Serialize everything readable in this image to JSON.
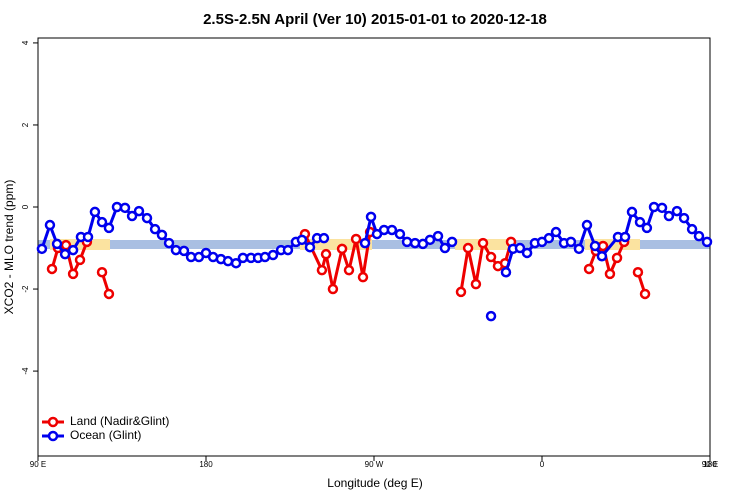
{
  "chart_data": {
    "type": "line",
    "title": "2.5S-2.5N April (Ver 10)   2015-01-01 to 2020-12-18",
    "xlabel": "Longitude (deg E)",
    "ylabel": "XCO2 - MLO trend (ppm)",
    "xlim": [
      90,
      450
    ],
    "ylim": [
      -6.07,
      4.12
    ],
    "xticks": [
      {
        "value": 90,
        "label": "90 E"
      },
      180,
      {
        "value": 270,
        "label": "90 W"
      },
      {
        "value": 360,
        "label": "0"
      },
      {
        "value": 450,
        "label": "90 E"
      },
      {
        "value": 540,
        "label": "180"
      }
    ],
    "yticks": [
      4,
      2,
      0,
      -2,
      -4
    ],
    "legend": "bottomleft",
    "series": [
      {
        "name": "Land (Nadir&Glint)",
        "color": "#ee0000",
        "x": [
          97.5,
          100.7,
          105.0,
          108.8,
          112.5,
          116.2,
          null,
          124.3,
          128.0,
          null,
          233.0,
          242.1,
          244.3,
          248.0,
          252.9,
          256.6,
          260.4,
          264.1,
          267.9,
          null,
          316.6,
          320.4,
          324.6,
          328.4,
          332.7,
          336.4,
          340.2,
          343.4,
          null,
          385.2,
          388.9,
          392.7,
          396.4,
          400.2,
          404.0,
          null,
          411.4,
          415.2
        ],
        "values": [
          -1.51,
          -1.0,
          -0.93,
          -1.63,
          -1.29,
          -0.85,
          null,
          -1.59,
          -2.12,
          null,
          -0.66,
          -1.54,
          -1.15,
          -2.0,
          -1.02,
          -1.54,
          -0.78,
          -1.71,
          -0.61,
          null,
          -2.07,
          -1.0,
          -1.88,
          -0.88,
          -1.22,
          -1.44,
          -1.37,
          -0.85,
          null,
          -1.51,
          -1.07,
          -0.95,
          -1.63,
          -1.24,
          -0.85,
          null,
          -1.59,
          -2.12
        ]
      },
      {
        "name": "Ocean (Glint)",
        "color": "#0000ee",
        "x": [
          92.1,
          96.4,
          100.2,
          104.5,
          108.8,
          113.0,
          116.8,
          120.5,
          124.3,
          128.0,
          132.3,
          136.6,
          140.4,
          144.1,
          148.4,
          152.7,
          156.4,
          160.2,
          163.9,
          168.2,
          172.0,
          176.2,
          180.0,
          183.8,
          188.0,
          191.8,
          196.1,
          199.8,
          204.1,
          207.9,
          211.6,
          215.9,
          220.2,
          223.9,
          228.2,
          231.4,
          235.7,
          239.5,
          243.2,
          null,
          265.2,
          268.4,
          271.6,
          275.4,
          279.6,
          283.9,
          287.7,
          292.0,
          296.2,
          300.0,
          304.3,
          308.0,
          311.8,
          null,
          332.7,
          null,
          340.7,
          344.5,
          348.2,
          352.0,
          356.2,
          360.0,
          363.7,
          367.5,
          371.8,
          375.5,
          379.8,
          384.1,
          388.4,
          392.1,
          400.7,
          404.5,
          408.2,
          412.5,
          416.2,
          420.0,
          424.3,
          428.0,
          432.3,
          436.1,
          440.4,
          444.1,
          448.4
        ],
        "values": [
          -1.02,
          -0.44,
          -0.9,
          -1.15,
          -1.05,
          -0.73,
          -0.73,
          -0.12,
          -0.37,
          -0.51,
          0,
          -0.02,
          -0.22,
          -0.1,
          -0.27,
          -0.54,
          -0.68,
          -0.88,
          -1.05,
          -1.07,
          -1.22,
          -1.22,
          -1.12,
          -1.22,
          -1.27,
          -1.32,
          -1.37,
          -1.24,
          -1.24,
          -1.24,
          -1.22,
          -1.17,
          -1.05,
          -1.05,
          -0.85,
          -0.8,
          -0.98,
          -0.76,
          -0.76,
          null,
          -0.88,
          -0.24,
          -0.66,
          -0.56,
          -0.56,
          -0.66,
          -0.85,
          -0.88,
          -0.9,
          -0.8,
          -0.71,
          -1.0,
          -0.85,
          null,
          -2.66,
          null,
          -1.59,
          -1.02,
          -1.0,
          -1.12,
          -0.88,
          -0.85,
          -0.76,
          -0.61,
          -0.88,
          -0.85,
          -1.02,
          -0.44,
          -0.95,
          -1.2,
          -0.73,
          -0.73,
          -0.12,
          -0.37,
          -0.51,
          0,
          -0.02,
          -0.22,
          -0.1,
          -0.27,
          -0.54,
          -0.71,
          -0.85
        ]
      }
    ]
  }
}
